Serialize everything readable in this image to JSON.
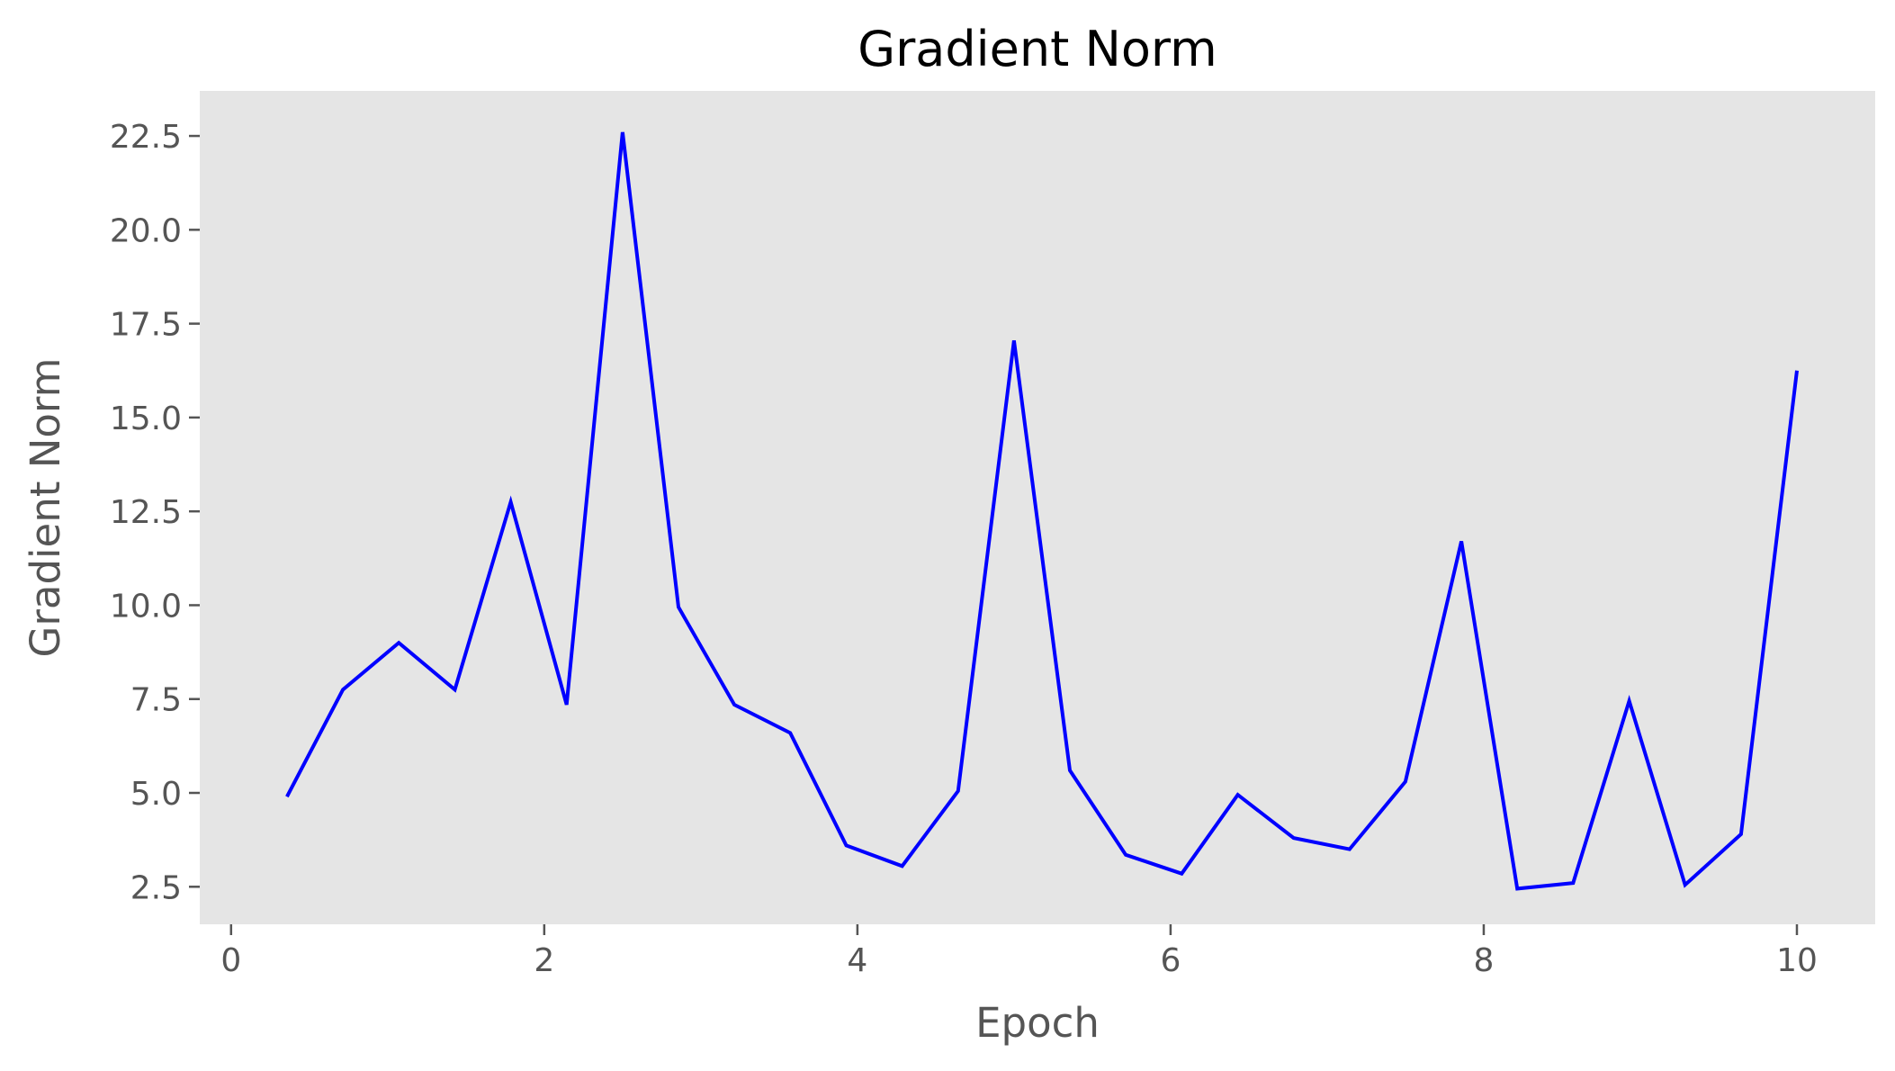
{
  "chart_data": {
    "type": "line",
    "title": "Gradient Norm",
    "xlabel": "Epoch",
    "ylabel": "Gradient Norm",
    "xlim": [
      -0.2,
      10.5
    ],
    "ylim": [
      1.5,
      23.7
    ],
    "xticks": [
      0,
      2,
      4,
      6,
      8,
      10
    ],
    "xtick_labels": [
      "0",
      "2",
      "4",
      "6",
      "8",
      "10"
    ],
    "yticks": [
      2.5,
      5.0,
      7.5,
      10.0,
      12.5,
      15.0,
      17.5,
      20.0,
      22.5
    ],
    "ytick_labels": [
      "2.5",
      "5.0",
      "7.5",
      "10.0",
      "12.5",
      "15.0",
      "17.5",
      "20.0",
      "22.5"
    ],
    "grid": false,
    "colors": {
      "background": "#e5e5e5",
      "line": "#0000ff"
    },
    "series": [
      {
        "x": [
          0.357,
          0.714,
          1.071,
          1.429,
          1.786,
          2.143,
          2.5,
          2.857,
          3.214,
          3.571,
          3.929,
          4.286,
          4.643,
          5.0,
          5.357,
          5.714,
          6.071,
          6.429,
          6.786,
          7.143,
          7.5,
          7.857,
          8.214,
          8.571,
          8.929,
          9.286,
          9.643,
          10.0
        ],
        "values": [
          4.9,
          7.75,
          9.0,
          7.75,
          12.75,
          7.35,
          22.6,
          9.95,
          7.35,
          6.6,
          3.6,
          3.05,
          5.05,
          17.05,
          5.6,
          3.35,
          2.85,
          4.95,
          3.8,
          3.5,
          5.3,
          11.7,
          2.45,
          2.6,
          7.45,
          2.55,
          3.9,
          16.25
        ]
      }
    ]
  }
}
